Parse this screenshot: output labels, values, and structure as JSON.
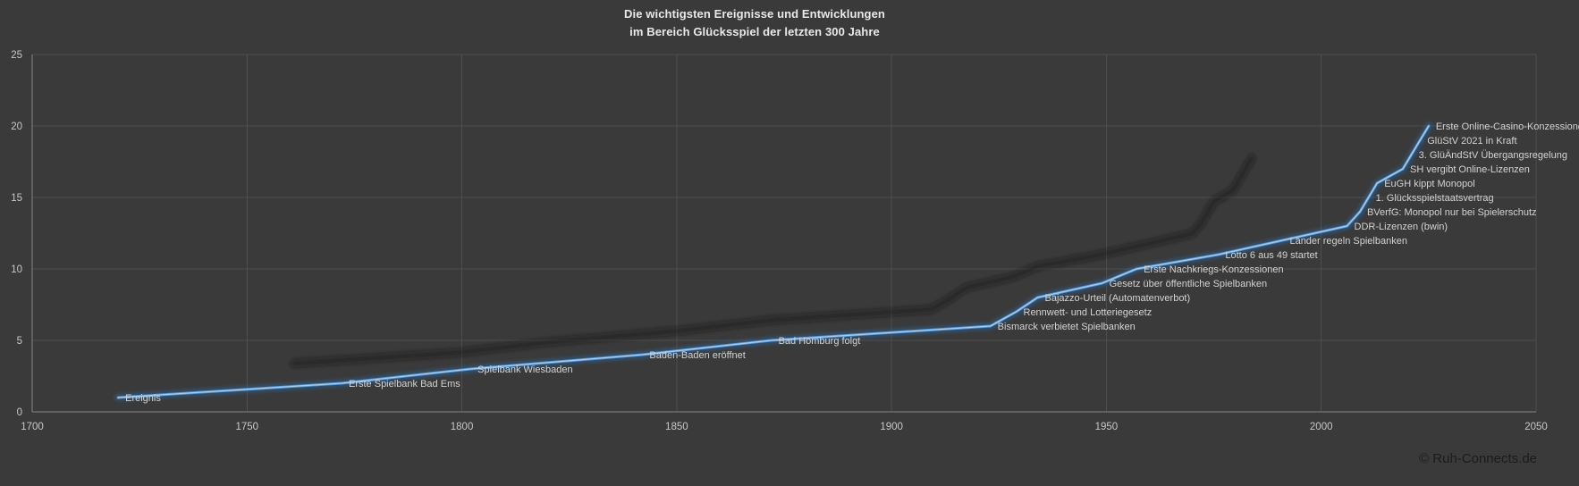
{
  "title": {
    "line1": "Die wichtigsten Ereignisse und Entwicklungen",
    "line2": "im Bereich Glücksspiel der letzten 300 Jahre"
  },
  "copyright": "© Ruh-Connects.de",
  "colors": {
    "background": "#3a3a3a",
    "gridline": "#4e4e4e",
    "axis_line": "#878787",
    "tick_label": "#c8c8c8",
    "title_text": "#e9e9e9",
    "data_label": "#d5d3d1",
    "line_main": "#5b9bd5",
    "line_glow": "#2d5f93",
    "line_core": "#a9cdee",
    "shadow": "#191919"
  },
  "chart_data": {
    "type": "line",
    "title": "Die wichtigsten Ereignisse und Entwicklungen im Bereich Glücksspiel der letzten 300 Jahre",
    "xlabel": "",
    "ylabel": "",
    "xlim": [
      1700,
      2050
    ],
    "ylim": [
      0,
      25
    ],
    "x_ticks": [
      1700,
      1750,
      1800,
      1850,
      1900,
      1950,
      2000,
      2050
    ],
    "y_ticks": [
      0,
      5,
      10,
      15,
      20,
      25
    ],
    "grid": true,
    "legend": "none",
    "series": [
      {
        "name": "Ereignis",
        "points": [
          {
            "year": 1720,
            "value": 1,
            "label": "Ereignis"
          },
          {
            "year": 1772,
            "value": 2,
            "label": "Erste Spielbank Bad Ems"
          },
          {
            "year": 1802,
            "value": 3,
            "label": "Spielbank Wiesbaden"
          },
          {
            "year": 1842,
            "value": 4,
            "label": "Baden-Baden eröffnet"
          },
          {
            "year": 1872,
            "value": 5,
            "label": "Bad Homburg folgt"
          },
          {
            "year": 1923,
            "value": 6,
            "label": "Bismarck verbietet Spielbanken"
          },
          {
            "year": 1929,
            "value": 7,
            "label": "Rennwett- und Lotteriegesetz"
          },
          {
            "year": 1934,
            "value": 8,
            "label": "Bajazzo-Urteil (Automatenverbot)"
          },
          {
            "year": 1949,
            "value": 9,
            "label": "Gesetz über öffentliche Spielbanken"
          },
          {
            "year": 1957,
            "value": 10,
            "label": "Erste Nachkriegs-Konzessionen"
          },
          {
            "year": 1976,
            "value": 11,
            "label": "Lotto 6 aus 49 startet"
          },
          {
            "year": 1991,
            "value": 12,
            "label": "Länder regeln Spielbanken"
          },
          {
            "year": 2006,
            "value": 13,
            "label": "DDR-Lizenzen (bwin)"
          },
          {
            "year": 2009,
            "value": 14,
            "label": "BVerfG: Monopol nur bei Spielerschutz"
          },
          {
            "year": 2011,
            "value": 15,
            "label": "1. Glücksspielstaatsvertrag"
          },
          {
            "year": 2013,
            "value": 16,
            "label": "EuGH kippt Monopol"
          },
          {
            "year": 2019,
            "value": 17,
            "label": "SH vergibt Online-Lizenzen"
          },
          {
            "year": 2021,
            "value": 18,
            "label": "3. GlüÄndStV Übergangsregelung"
          },
          {
            "year": 2023,
            "value": 19,
            "label": "GlüStV 2021 in Kraft"
          },
          {
            "year": 2025,
            "value": 20,
            "label": "Erste Online-Casino-Konzessionen"
          }
        ]
      }
    ]
  }
}
